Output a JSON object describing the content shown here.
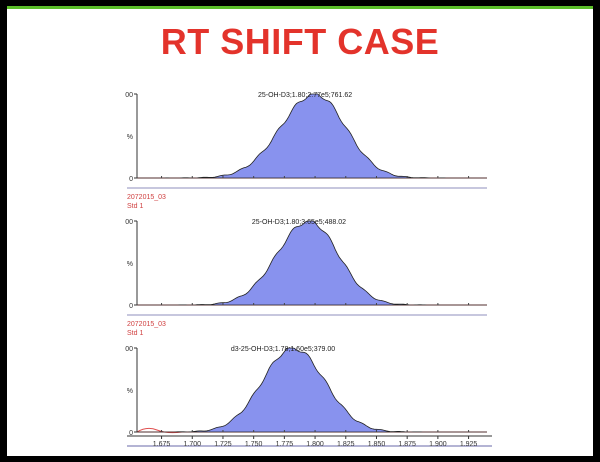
{
  "slide": {
    "title": "RT SHIFT CASE",
    "title_color": "#e3332b",
    "accent_color": "#5cbf2a"
  },
  "chart_data": [
    {
      "type": "area",
      "annotation": "25-OH-D3;1.80;2.77e5;761.62",
      "label_line1": "",
      "label_line2": "",
      "ytick_top": "00",
      "ymid_label": "%",
      "ytick_bottom": "0",
      "ylim": [
        0,
        100
      ],
      "xlim": [
        1.655,
        1.94
      ],
      "peak": {
        "center": 1.8,
        "height": 100,
        "sigma_left": 0.028,
        "sigma_right": 0.025
      },
      "fill": "#8892ee",
      "baseline_color": "#e05050"
    },
    {
      "type": "area",
      "annotation": "25-OH-D3;1.80;3.65e5;488.02",
      "label_line1": "2072015_03",
      "label_line2": "Std 1",
      "ytick_top": "00",
      "ymid_label": "%",
      "ytick_bottom": "0",
      "ylim": [
        0,
        100
      ],
      "xlim": [
        1.655,
        1.94
      ],
      "peak": {
        "center": 1.795,
        "height": 100,
        "sigma_left": 0.026,
        "sigma_right": 0.024
      },
      "fill": "#8892ee",
      "baseline_color": "#e05050"
    },
    {
      "type": "area",
      "annotation": "d3-25-OH-D3;1.78;1.60e5;379.00",
      "label_line1": "2072015_03",
      "label_line2": "Std 1",
      "ytick_top": "00",
      "ymid_label": "%",
      "ytick_bottom": "0",
      "ylim": [
        0,
        100
      ],
      "xlim": [
        1.655,
        1.94
      ],
      "peak": {
        "center": 1.782,
        "height": 100,
        "sigma_left": 0.025,
        "sigma_right": 0.026
      },
      "fill": "#8892ee",
      "baseline_color": "#e05050"
    }
  ],
  "xaxis": {
    "ticks": [
      "1.675",
      "1.700",
      "1.725",
      "1.750",
      "1.775",
      "1.800",
      "1.825",
      "1.850",
      "1.875",
      "1.900",
      "1.925"
    ],
    "values": [
      1.675,
      1.7,
      1.725,
      1.75,
      1.775,
      1.8,
      1.825,
      1.85,
      1.875,
      1.9,
      1.925
    ]
  }
}
